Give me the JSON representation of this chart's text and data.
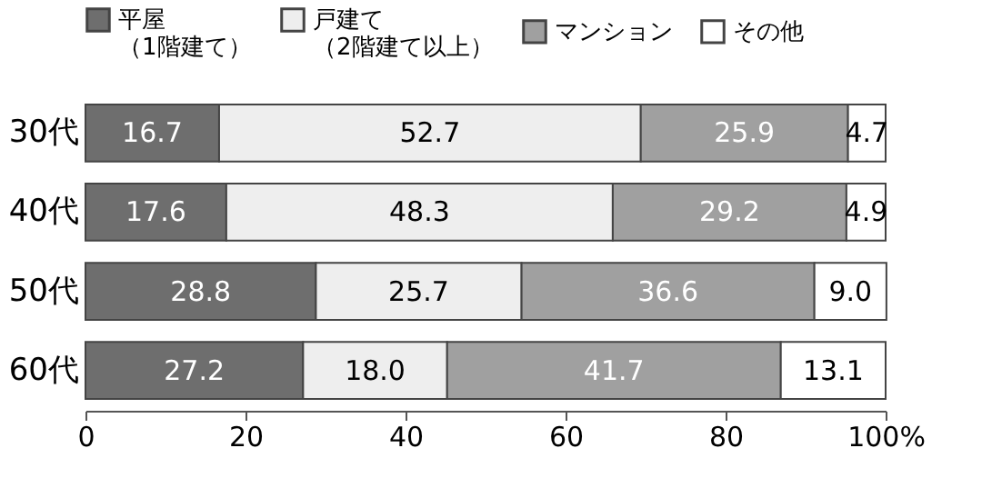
{
  "chart_data": {
    "type": "bar",
    "orientation": "horizontal",
    "stacked": true,
    "categories": [
      "30代",
      "40代",
      "50代",
      "60代"
    ],
    "series": [
      {
        "name": "平屋（1階建て）",
        "color": "#6e6e6e",
        "values": [
          16.7,
          17.6,
          28.8,
          27.2
        ],
        "value_labels": [
          "16.7",
          "17.6",
          "28.8",
          "27.2"
        ]
      },
      {
        "name": "戸建て（2階建て以上）",
        "color": "#eeeeee",
        "values": [
          52.7,
          48.3,
          25.7,
          18.0
        ],
        "value_labels": [
          "52.7",
          "48.3",
          "25.7",
          "18.0"
        ]
      },
      {
        "name": "マンション",
        "color": "#a0a0a0",
        "values": [
          25.9,
          29.2,
          36.6,
          41.7
        ],
        "value_labels": [
          "25.9",
          "29.2",
          "36.6",
          "41.7"
        ]
      },
      {
        "name": "その他",
        "color": "#ffffff",
        "values": [
          4.7,
          4.9,
          9.0,
          13.1
        ],
        "value_labels": [
          "4.7",
          "4.9",
          "9.0",
          "13.1"
        ]
      }
    ],
    "xlim": [
      0,
      100
    ],
    "xticks": [
      0,
      20,
      40,
      60,
      80,
      {
        "value": 100,
        "label": "100%"
      }
    ],
    "legend": "top",
    "grid": false
  }
}
